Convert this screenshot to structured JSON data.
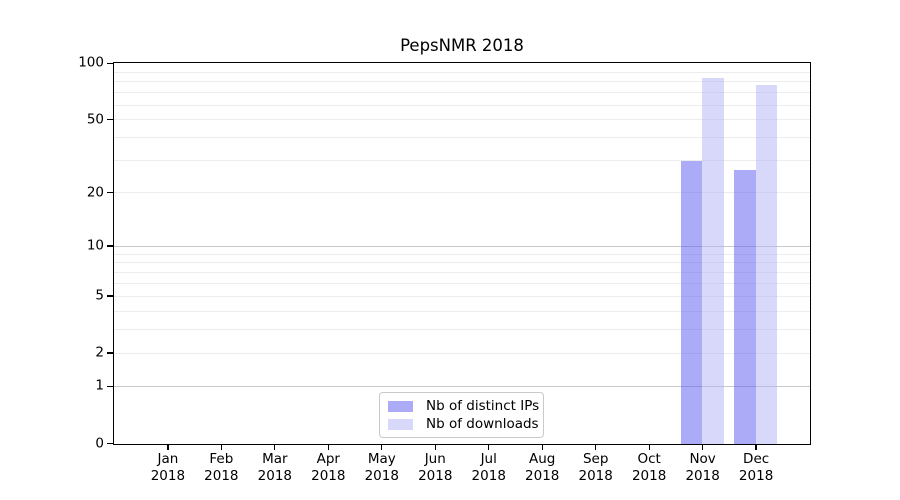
{
  "title": "PepsNMR 2018",
  "chart_data": {
    "type": "bar",
    "title": "PepsNMR 2018",
    "categories": [
      "Jan",
      "Feb",
      "Mar",
      "Apr",
      "May",
      "Jun",
      "Jul",
      "Aug",
      "Sep",
      "Oct",
      "Nov",
      "Dec"
    ],
    "category_year": "2018",
    "series": [
      {
        "name": "Nb of distinct IPs",
        "color": "rgba(88,88,242,0.50)",
        "values": [
          0,
          0,
          0,
          0,
          0,
          0,
          0,
          0,
          0,
          0,
          30,
          27
        ]
      },
      {
        "name": "Nb of downloads",
        "color": "rgba(177,177,245,0.50)",
        "values": [
          0,
          0,
          0,
          0,
          0,
          0,
          0,
          0,
          0,
          0,
          84,
          77
        ]
      }
    ],
    "yaxis": {
      "scale": "log1p",
      "max": 100,
      "ticks": [
        100,
        50,
        20,
        10,
        5,
        2,
        1,
        0
      ],
      "minor_grid": [
        90,
        80,
        70,
        60,
        50,
        40,
        30,
        20,
        9,
        8,
        7,
        6,
        5,
        4,
        3,
        2
      ],
      "major_grid": [
        10,
        1
      ]
    },
    "grid": true,
    "legend_position": "lower-center"
  },
  "legend": {
    "items": [
      "Nb of distinct IPs",
      "Nb of downloads"
    ]
  },
  "colors": {
    "bar_distinct_ips": "rgba(88,88,242,0.50)",
    "bar_downloads": "rgba(177,177,245,0.50)",
    "grid_minor": "#ececec",
    "grid_major": "#c9c9c9",
    "axis": "#000000",
    "legend_border": "#c9c9c9"
  }
}
